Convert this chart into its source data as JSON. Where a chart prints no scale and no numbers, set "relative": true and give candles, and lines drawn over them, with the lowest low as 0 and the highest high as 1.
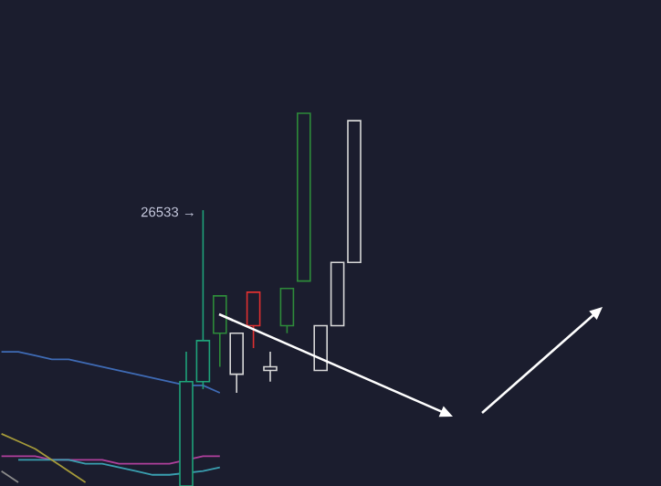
{
  "chart_data": {
    "type": "candlestick",
    "relative": true,
    "categories": [
      null,
      null,
      null,
      null,
      null,
      null,
      null,
      null,
      null,
      null,
      null,
      null,
      null,
      null,
      null,
      null,
      null,
      null,
      null,
      null,
      null,
      null
    ],
    "ohlc": [
      null,
      null,
      null,
      null,
      null,
      null,
      null,
      null,
      null,
      null,
      null,
      [
        0,
        0.36,
        0,
        0.28
      ],
      [
        0.28,
        0.74,
        0.26,
        0.39
      ],
      [
        0.41,
        0.51,
        0.32,
        0.51
      ],
      [
        0.3,
        0.41,
        0.25,
        0.41
      ],
      [
        0.52,
        0.52,
        0.37,
        0.43
      ],
      [
        0.31,
        0.36,
        0.28,
        0.32
      ],
      [
        0.43,
        0.53,
        0.41,
        0.53
      ],
      [
        0.55,
        1,
        0.55,
        1
      ],
      [
        0.31,
        0.43,
        0.31,
        0.43
      ],
      [
        0.43,
        0.6,
        0.43,
        0.6
      ],
      [
        0.6,
        0.98,
        0.6,
        0.98
      ]
    ],
    "colors": [
      null,
      null,
      null,
      null,
      null,
      null,
      null,
      null,
      null,
      null,
      null,
      "#1fa37a",
      "#1fa37a",
      "#2e8b3a",
      "#d8d8d8",
      "#e03030",
      "#d8d8d8",
      "#2e8b3a",
      "#2e8b3a",
      "#d8d8d8",
      "#d8d8d8",
      "#d8d8d8"
    ],
    "series": [
      {
        "type": "line",
        "color": "#3f6bb5",
        "values": [
          0.36,
          0.36,
          0.35,
          0.34,
          0.34,
          0.33,
          0.32,
          0.31,
          0.3,
          0.29,
          0.28,
          0.27,
          0.27,
          0.25,
          null,
          null,
          null,
          null,
          null,
          null,
          null,
          null
        ]
      },
      {
        "type": "line",
        "color": "#b0409c",
        "values": [
          0.08,
          0.08,
          0.08,
          0.07,
          0.07,
          0.07,
          0.07,
          0.06,
          0.06,
          0.06,
          0.06,
          null,
          0.08,
          0.08,
          null,
          null,
          null,
          null,
          null,
          null,
          null,
          null
        ]
      },
      {
        "type": "line",
        "color": "#3a9fb0",
        "values": [
          null,
          0.07,
          0.07,
          0.07,
          0.07,
          0.06,
          0.06,
          0.05,
          0.04,
          0.03,
          0.03,
          null,
          0.04,
          0.05,
          null,
          null,
          null,
          null,
          null,
          null,
          null,
          null
        ]
      },
      {
        "type": "line",
        "color": "#a59a3a",
        "values": [
          0.14,
          0.12,
          0.1,
          0.07,
          0.04,
          0.01,
          null,
          null,
          null,
          null,
          null,
          null,
          null,
          null,
          null,
          null,
          null,
          null,
          null,
          null,
          null,
          null
        ]
      },
      {
        "type": "line",
        "color": "#8a8a8a",
        "values": [
          0.04,
          0.01,
          null,
          null,
          null,
          null,
          null,
          null,
          null,
          null,
          null,
          null,
          null,
          null,
          null,
          null,
          null,
          null,
          null,
          null,
          null,
          null
        ]
      }
    ],
    "annotations": [
      "26533 →"
    ]
  }
}
